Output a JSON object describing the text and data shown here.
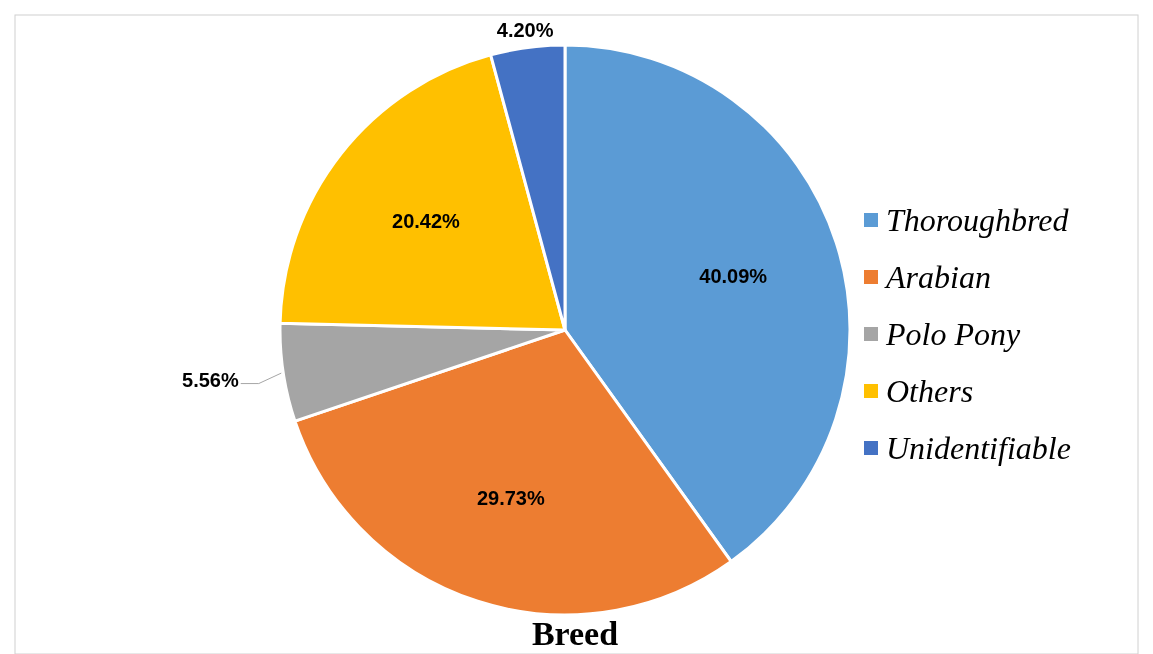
{
  "chart_data": {
    "type": "pie",
    "title": "Breed",
    "categories": [
      "Thoroughbred",
      "Arabian",
      "Polo Pony",
      "Others",
      "Unidentifiable"
    ],
    "values": [
      40.09,
      29.73,
      5.56,
      20.42,
      4.2
    ],
    "colors": [
      "#5b9bd5",
      "#ed7d31",
      "#a5a5a5",
      "#ffc000",
      "#4472c4"
    ],
    "value_labels": [
      "40.09%",
      "29.73%",
      "5.56%",
      "20.42%",
      "4.20%"
    ],
    "legend": "right"
  }
}
